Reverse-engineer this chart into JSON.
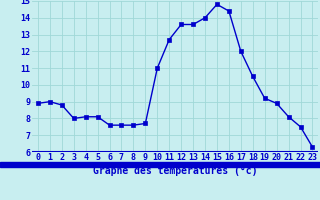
{
  "hours": [
    0,
    1,
    2,
    3,
    4,
    5,
    6,
    7,
    8,
    9,
    10,
    11,
    12,
    13,
    14,
    15,
    16,
    17,
    18,
    19,
    20,
    21,
    22,
    23
  ],
  "temps": [
    8.9,
    9.0,
    8.8,
    8.0,
    8.1,
    8.1,
    7.6,
    7.6,
    7.6,
    7.7,
    11.0,
    12.7,
    13.6,
    13.6,
    14.0,
    14.8,
    14.4,
    12.0,
    10.5,
    9.2,
    8.9,
    8.1,
    7.5,
    6.3
  ],
  "line_color": "#0000cc",
  "marker": "s",
  "marker_size": 2.5,
  "bg_color": "#c8eef0",
  "grid_color": "#a0d8d8",
  "xlabel": "Graphe des températures (°c)",
  "xlabel_color": "#0000cc",
  "tick_color": "#0000cc",
  "axis_bar_color": "#0000cc",
  "ylim": [
    6,
    15
  ],
  "xlim_min": -0.5,
  "xlim_max": 23.5,
  "yticks": [
    6,
    7,
    8,
    9,
    10,
    11,
    12,
    13,
    14,
    15
  ],
  "xticks": [
    0,
    1,
    2,
    3,
    4,
    5,
    6,
    7,
    8,
    9,
    10,
    11,
    12,
    13,
    14,
    15,
    16,
    17,
    18,
    19,
    20,
    21,
    22,
    23
  ],
  "label_fontsize": 7,
  "tick_fontsize": 6,
  "linewidth": 1.0
}
